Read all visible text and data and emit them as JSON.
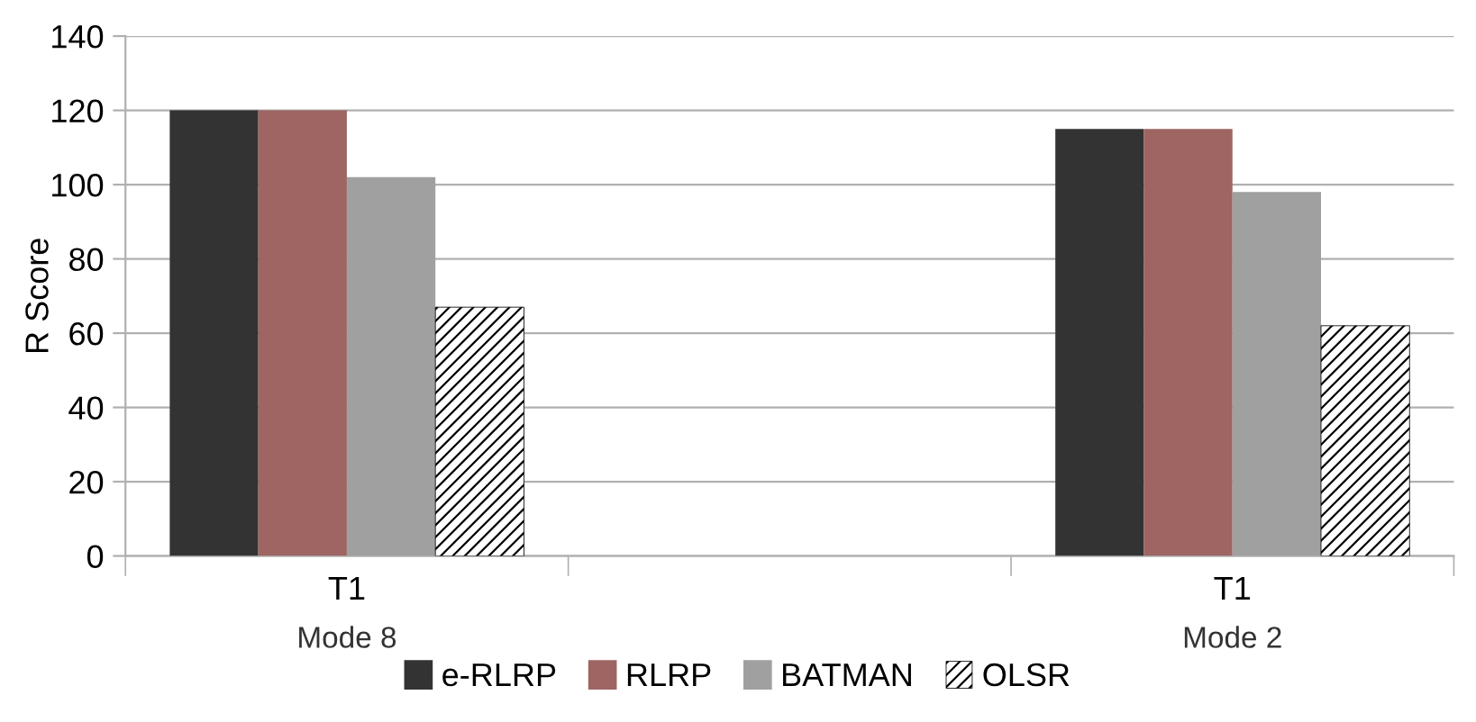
{
  "chart_data": {
    "type": "bar",
    "ylabel": "R Score",
    "categories": [
      "T1",
      null,
      "T1"
    ],
    "series": [
      {
        "name": "e-RLRP",
        "color": "#333333",
        "values": [
          120,
          null,
          115
        ]
      },
      {
        "name": "RLRP",
        "color": "#9e6563",
        "values": [
          120,
          null,
          115
        ]
      },
      {
        "name": "BATMAN",
        "color": "#a0a0a0",
        "values": [
          102,
          null,
          98
        ]
      },
      {
        "name": "OLSR",
        "color": "#000000",
        "values": [
          67,
          null,
          62
        ]
      }
    ],
    "annotations": [
      "Mode 8",
      "Mode 2"
    ],
    "ylim": [
      0,
      140
    ],
    "yticks": [
      0,
      20,
      40,
      60,
      80,
      100,
      120,
      140
    ],
    "grid": "y",
    "legend": "bottom"
  }
}
